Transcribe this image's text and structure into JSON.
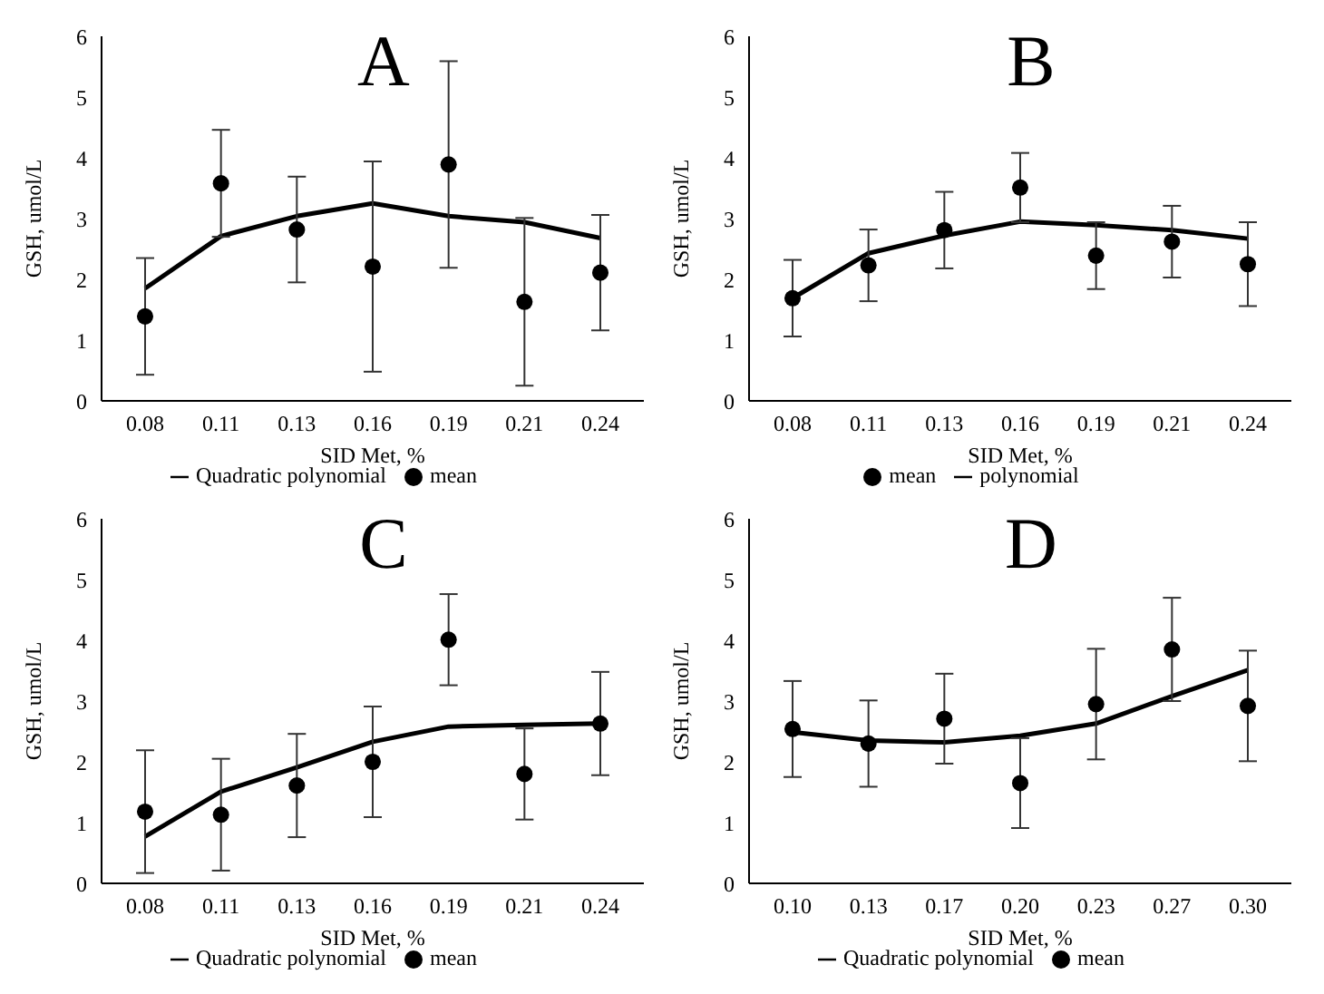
{
  "chart_data": [
    {
      "type": "line",
      "title": "A",
      "xlabel": "SID Met, %",
      "ylabel": "GSH, umol/L",
      "categories": [
        "0.08",
        "0.11",
        "0.13",
        "0.16",
        "0.19",
        "0.21",
        "0.24"
      ],
      "ylim": [
        0,
        6
      ],
      "yticks": [
        0,
        1,
        2,
        3,
        4,
        5,
        6
      ],
      "legend": "bottom",
      "series": [
        {
          "type": "line",
          "name": "Quadratic polynomial",
          "color": "#000000",
          "marker": "none",
          "line_style": "solid",
          "values": [
            1.85,
            2.71,
            3.04,
            3.25,
            3.04,
            2.94,
            2.68
          ]
        },
        {
          "type": "scatter",
          "name": "mean",
          "color": "#000000",
          "marker": "circle",
          "values": [
            1.39,
            3.58,
            2.82,
            2.21,
            3.89,
            1.63,
            2.11
          ],
          "errors": [
            0.96,
            0.88,
            0.87,
            1.73,
            1.7,
            1.38,
            0.95
          ]
        }
      ]
    },
    {
      "type": "line",
      "title": "B",
      "xlabel": "SID Met, %",
      "ylabel": "GSH, umol/L",
      "categories": [
        "0.08",
        "0.11",
        "0.13",
        "0.16",
        "0.19",
        "0.21",
        "0.24"
      ],
      "ylim": [
        0,
        6
      ],
      "yticks": [
        0,
        1,
        2,
        3,
        4,
        5,
        6
      ],
      "legend": "bottom",
      "series": [
        {
          "type": "line",
          "name": "polynomial",
          "color": "#000000",
          "marker": "none",
          "line_style": "solid",
          "values": [
            1.69,
            2.43,
            2.72,
            2.95,
            2.89,
            2.81,
            2.67
          ]
        },
        {
          "type": "scatter",
          "name": "mean",
          "color": "#000000",
          "marker": "circle",
          "values": [
            1.69,
            2.23,
            2.81,
            3.51,
            2.39,
            2.62,
            2.25
          ],
          "errors": [
            0.63,
            0.59,
            0.63,
            0.57,
            0.55,
            0.59,
            0.69
          ]
        }
      ]
    },
    {
      "type": "line",
      "title": "C",
      "xlabel": "SID Met, %",
      "ylabel": "GSH, umol/L",
      "categories": [
        "0.08",
        "0.11",
        "0.13",
        "0.16",
        "0.19",
        "0.21",
        "0.24"
      ],
      "ylim": [
        0,
        6
      ],
      "yticks": [
        0,
        1,
        2,
        3,
        4,
        5,
        6
      ],
      "legend": "bottom",
      "series": [
        {
          "type": "line",
          "name": "Quadratic polynomial",
          "color": "#000000",
          "marker": "none",
          "line_style": "solid",
          "values": [
            0.77,
            1.51,
            1.91,
            2.33,
            2.58,
            2.61,
            2.63
          ]
        },
        {
          "type": "scatter",
          "name": "mean",
          "color": "#000000",
          "marker": "circle",
          "values": [
            1.18,
            1.13,
            1.61,
            2.0,
            4.01,
            1.8,
            2.63
          ],
          "errors": [
            1.01,
            0.92,
            0.85,
            0.91,
            0.75,
            0.75,
            0.85
          ]
        }
      ]
    },
    {
      "type": "line",
      "title": "D",
      "xlabel": "SID Met, %",
      "ylabel": "GSH, umol/L",
      "categories": [
        "0.10",
        "0.13",
        "0.17",
        "0.20",
        "0.23",
        "0.27",
        "0.30"
      ],
      "ylim": [
        0,
        6
      ],
      "yticks": [
        0,
        1,
        2,
        3,
        4,
        5,
        6
      ],
      "legend": "bottom",
      "series": [
        {
          "type": "line",
          "name": "Quadratic polynomial",
          "color": "#000000",
          "marker": "none",
          "line_style": "solid",
          "values": [
            2.49,
            2.35,
            2.32,
            2.43,
            2.63,
            3.08,
            3.51
          ]
        },
        {
          "type": "scatter",
          "name": "mean",
          "color": "#000000",
          "marker": "circle",
          "values": [
            2.54,
            2.3,
            2.71,
            1.65,
            2.95,
            3.85,
            2.92
          ],
          "errors": [
            0.79,
            0.71,
            0.74,
            0.74,
            0.91,
            0.85,
            0.91
          ]
        }
      ]
    }
  ]
}
